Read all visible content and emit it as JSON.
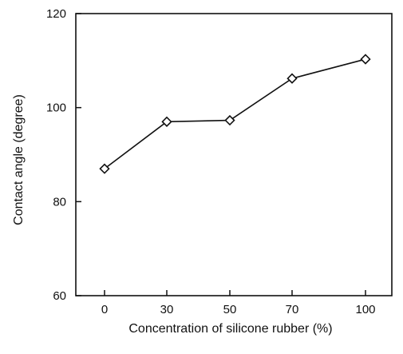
{
  "chart_data": {
    "type": "line",
    "title": "",
    "xlabel": "Concentration of silicone rubber (%)",
    "ylabel": "Contact angle (degree)",
    "categories": [
      "0",
      "30",
      "50",
      "70",
      "100"
    ],
    "series": [
      {
        "values": [
          87,
          97,
          97.3,
          106.2,
          110.3
        ]
      }
    ],
    "ylim": [
      60,
      120
    ],
    "yticks": [
      60,
      80,
      100,
      120
    ],
    "marker": "diamond",
    "grid": false,
    "legend": "none"
  }
}
